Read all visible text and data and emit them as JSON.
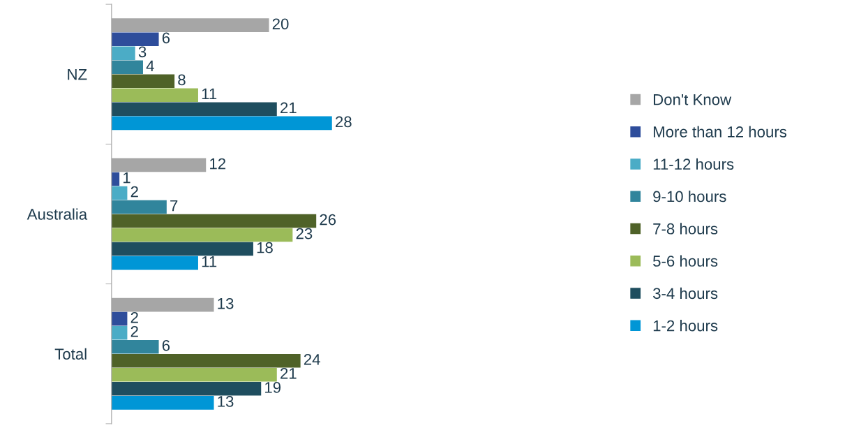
{
  "chart_data": {
    "type": "bar",
    "orientation": "horizontal",
    "categories": [
      "NZ",
      "Australia",
      "Total"
    ],
    "data_labels": true,
    "legend": "right",
    "grid": false,
    "series": [
      {
        "name": "Don't Know",
        "color": "#a6a6a6",
        "values": [
          20,
          12,
          13
        ]
      },
      {
        "name": "More than 12 hours",
        "color": "#2e4d9b",
        "values": [
          6,
          1,
          2
        ]
      },
      {
        "name": "11-12 hours",
        "color": "#4bacc6",
        "values": [
          3,
          2,
          2
        ]
      },
      {
        "name": "9-10 hours",
        "color": "#31859c",
        "values": [
          4,
          7,
          6
        ]
      },
      {
        "name": "7-8 hours",
        "color": "#4f6228",
        "values": [
          8,
          26,
          24
        ]
      },
      {
        "name": "5-6 hours",
        "color": "#9bbb59",
        "values": [
          11,
          23,
          21
        ]
      },
      {
        "name": "3-4 hours",
        "color": "#1f4e5f",
        "values": [
          21,
          18,
          19
        ]
      },
      {
        "name": "1-2 hours",
        "color": "#0096d6",
        "values": [
          28,
          11,
          13
        ]
      }
    ]
  }
}
